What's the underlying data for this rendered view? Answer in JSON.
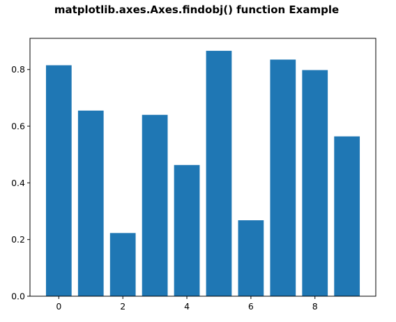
{
  "chart_data": {
    "type": "bar",
    "title": "matplotlib.axes.Axes.findobj() function Example",
    "xlabel": "",
    "ylabel": "",
    "categories": [
      0,
      1,
      2,
      3,
      4,
      5,
      6,
      7,
      8,
      9
    ],
    "values": [
      0.815,
      0.655,
      0.223,
      0.64,
      0.463,
      0.866,
      0.268,
      0.835,
      0.798,
      0.564
    ],
    "bar_color": "#1f77b4",
    "xlim": [
      -0.9,
      9.9
    ],
    "ylim": [
      0.0,
      0.91
    ],
    "xticks": [
      0,
      2,
      4,
      6,
      8
    ],
    "xtick_labels": [
      "0",
      "2",
      "4",
      "6",
      "8"
    ],
    "yticks": [
      0.0,
      0.2,
      0.4,
      0.6,
      0.8
    ],
    "ytick_labels": [
      "0.0",
      "0.2",
      "0.4",
      "0.6",
      "0.8"
    ],
    "grid": false,
    "legend": "none"
  }
}
